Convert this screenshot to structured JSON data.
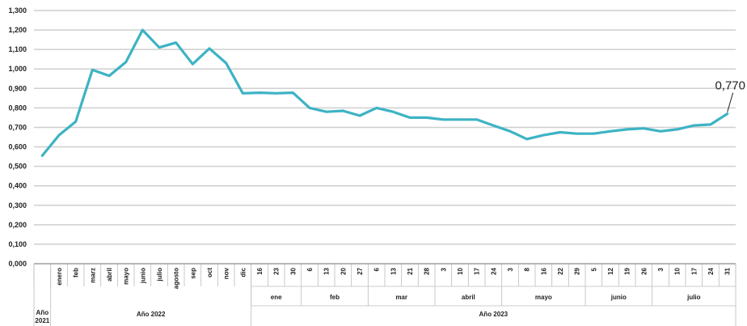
{
  "chart_data": {
    "type": "line",
    "title": "",
    "xlabel": "",
    "ylabel": "",
    "ylim": [
      0,
      1.3
    ],
    "y_ticks": [
      "0,000",
      "0,100",
      "0,200",
      "0,300",
      "0,400",
      "0,500",
      "0,600",
      "0,700",
      "0,800",
      "0,900",
      "1,000",
      "1,100",
      "1,200",
      "1,300"
    ],
    "grid": true,
    "line_color": "#3db3c4",
    "x": [
      "",
      "enero",
      "feb",
      "marz",
      "abril",
      "mayo",
      "junio",
      "julio",
      "agosto",
      "sep",
      "oct",
      "nov",
      "dic",
      "16",
      "23",
      "30",
      "6",
      "13",
      "20",
      "27",
      "6",
      "13",
      "21",
      "28",
      "3",
      "10",
      "17",
      "24",
      "3",
      "8",
      "16",
      "22",
      "29",
      "5",
      "12",
      "19",
      "26",
      "3",
      "10",
      "17",
      "24",
      "31"
    ],
    "values": [
      0.555,
      0.66,
      0.73,
      0.995,
      0.965,
      1.035,
      1.2,
      1.11,
      1.135,
      1.025,
      1.105,
      1.03,
      0.875,
      0.878,
      0.875,
      0.878,
      0.8,
      0.78,
      0.785,
      0.76,
      0.8,
      0.78,
      0.75,
      0.75,
      0.74,
      0.74,
      0.74,
      0.71,
      0.68,
      0.64,
      0.66,
      0.675,
      0.668,
      0.668,
      0.68,
      0.69,
      0.695,
      0.68,
      0.69,
      0.71,
      0.715,
      0.77
    ],
    "month_groups": [
      {
        "label": "ene",
        "start": 13,
        "end": 15
      },
      {
        "label": "feb",
        "start": 16,
        "end": 19
      },
      {
        "label": "mar",
        "start": 20,
        "end": 23
      },
      {
        "label": "abril",
        "start": 24,
        "end": 27
      },
      {
        "label": "mayo",
        "start": 28,
        "end": 32
      },
      {
        "label": "junio",
        "start": 33,
        "end": 36
      },
      {
        "label": "julio",
        "start": 37,
        "end": 41
      }
    ],
    "year_groups": [
      {
        "label": "Año 2021",
        "start": 0,
        "end": 0
      },
      {
        "label": "Año 2022",
        "start": 1,
        "end": 12
      },
      {
        "label": "Año 2023",
        "start": 13,
        "end": 41
      }
    ],
    "annotation": {
      "text": "0,770",
      "index": 41
    }
  }
}
